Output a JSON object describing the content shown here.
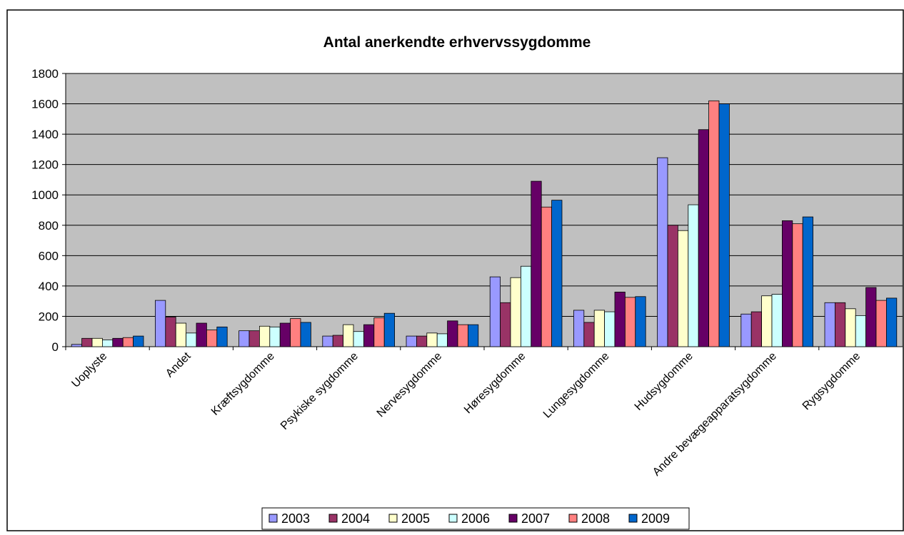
{
  "chart_data": {
    "type": "bar",
    "title": "Antal anerkendte erhvervssygdomme",
    "categories": [
      "Uoplyste",
      "Andet",
      "Kræftsygdomme",
      "Psykiske sygdomme",
      "Nervesygdomme",
      "Høresygdomme",
      "Lungesygdomme",
      "Hudsygdomme",
      "Andre bevægeapparatsygdomme",
      "Rygsygdomme"
    ],
    "series": [
      {
        "name": "2003",
        "color": "#9999ff",
        "values": [
          15,
          305,
          105,
          70,
          70,
          460,
          240,
          1245,
          215,
          290
        ]
      },
      {
        "name": "2004",
        "color": "#993366",
        "values": [
          55,
          195,
          105,
          75,
          70,
          290,
          160,
          800,
          230,
          290
        ]
      },
      {
        "name": "2005",
        "color": "#ffffcc",
        "values": [
          55,
          155,
          135,
          145,
          90,
          455,
          240,
          765,
          335,
          250
        ]
      },
      {
        "name": "2006",
        "color": "#ccffff",
        "values": [
          45,
          90,
          130,
          100,
          85,
          530,
          230,
          935,
          345,
          205
        ]
      },
      {
        "name": "2007",
        "color": "#660066",
        "values": [
          55,
          155,
          155,
          145,
          170,
          1090,
          360,
          1430,
          830,
          390
        ]
      },
      {
        "name": "2008",
        "color": "#ff8080",
        "values": [
          60,
          110,
          185,
          190,
          145,
          920,
          325,
          1620,
          810,
          305
        ]
      },
      {
        "name": "2009",
        "color": "#0066cc",
        "values": [
          70,
          130,
          160,
          220,
          145,
          965,
          330,
          1600,
          855,
          320
        ]
      }
    ],
    "ylim": [
      0,
      1800
    ],
    "yticks": [
      0,
      200,
      400,
      600,
      800,
      1000,
      1200,
      1400,
      1600,
      1800
    ],
    "grid": true,
    "legend": "bottom"
  }
}
